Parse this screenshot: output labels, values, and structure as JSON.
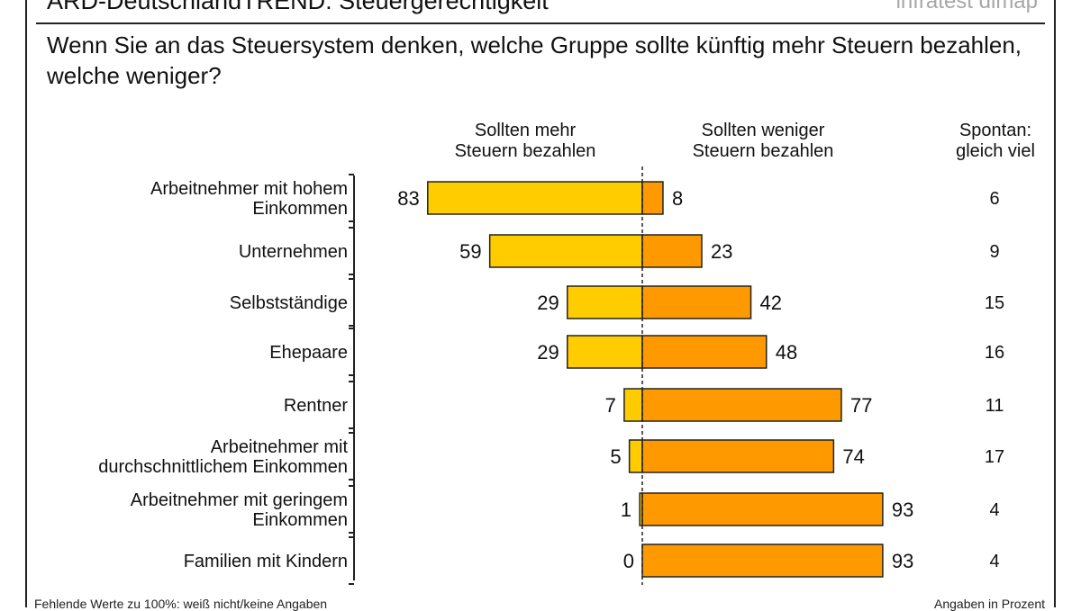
{
  "header": {
    "title": "ARD-DeutschlandTREND: Steuergerechtigkeit",
    "brand": "infratest dimap",
    "question": "Wenn Sie an das Steuersystem denken, welche Gruppe sollte künftig mehr Steuern bezahlen, welche weniger?"
  },
  "columns": {
    "more": [
      "Sollten mehr",
      "Steuern bezahlen"
    ],
    "less": [
      "Sollten weniger",
      "Steuern bezahlen"
    ],
    "same": [
      "Spontan:",
      "gleich viel"
    ]
  },
  "footer": {
    "left": "Fehlende Werte zu 100%: weiß nicht/keine Angaben",
    "right": "Angaben in Prozent"
  },
  "colors": {
    "more": "#ffcc00",
    "less": "#ff9900"
  },
  "chart_data": {
    "type": "bar",
    "categories": [
      [
        "Arbeitnehmer mit hohem",
        "Einkommen"
      ],
      [
        "Unternehmen"
      ],
      [
        "Selbstständige"
      ],
      [
        "Ehepaare"
      ],
      [
        "Rentner"
      ],
      [
        "Arbeitnehmer mit",
        "durchschnittlichem Einkommen"
      ],
      [
        "Arbeitnehmer mit geringem",
        "Einkommen"
      ],
      [
        "Familien mit Kindern"
      ]
    ],
    "series": [
      {
        "name": "Sollten mehr Steuern bezahlen",
        "values": [
          83,
          59,
          29,
          29,
          7,
          5,
          1,
          0
        ]
      },
      {
        "name": "Sollten weniger Steuern bezahlen",
        "values": [
          8,
          23,
          42,
          48,
          77,
          74,
          93,
          93
        ]
      },
      {
        "name": "Spontan: gleich viel",
        "values": [
          6,
          9,
          15,
          16,
          11,
          17,
          4,
          4
        ]
      }
    ],
    "unit": "Prozent"
  }
}
